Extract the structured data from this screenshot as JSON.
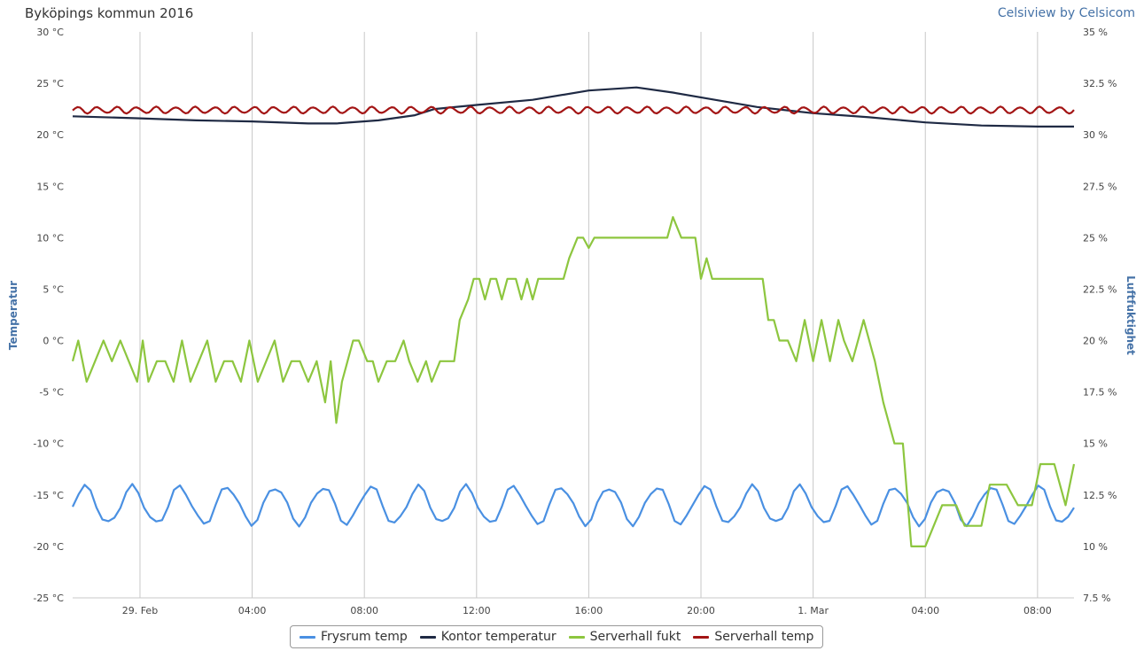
{
  "header": {
    "title": "Byköpings kommun 2016",
    "credit": "Celsiview by Celsicom"
  },
  "colors": {
    "frysrum": "#4A90E2",
    "kontor": "#1F2A44",
    "fukt": "#8DC63F",
    "serverhall_temp": "#A31515",
    "grid": "#C8C8C8"
  },
  "chart_data": {
    "type": "line",
    "grid": "vertical lines at x-axis ticks",
    "legend_position": "bottom-center",
    "x_axis": {
      "ticks": [
        "29. Feb",
        "04:00",
        "08:00",
        "12:00",
        "16:00",
        "20:00",
        "1. Mar",
        "04:00",
        "08:00"
      ],
      "tick_hours": [
        0,
        4,
        8,
        12,
        16,
        20,
        24,
        28,
        32
      ],
      "range_hours": [
        -2.4,
        33.3
      ]
    },
    "y_axis_left": {
      "title": "Temperatur",
      "ticks": [
        "30 °C",
        "25 °C",
        "20 °C",
        "15 °C",
        "10 °C",
        "5 °C",
        "0 °C",
        "-5 °C",
        "-10 °C",
        "-15 °C",
        "-20 °C",
        "-25 °C"
      ],
      "range": [
        -25,
        30
      ]
    },
    "y_axis_right": {
      "title": "Luftfuktighet",
      "ticks": [
        "35 %",
        "32.5 %",
        "30 %",
        "27.5 %",
        "25 %",
        "22.5 %",
        "20 %",
        "17.5 %",
        "15 %",
        "12.5 %",
        "10 %",
        "7.5 %"
      ],
      "range": [
        7.5,
        35
      ]
    },
    "series": [
      {
        "name": "Frysrum temp",
        "axis": "left",
        "style": "oscillating",
        "x_range_hours": [
          -2.4,
          33.3
        ],
        "base_value": -16,
        "amplitude": 1.8,
        "period_hours": 1.7
      },
      {
        "name": "Kontor temperatur",
        "axis": "left",
        "style": "smooth",
        "points": [
          [
            -2.4,
            21.8
          ],
          [
            0,
            21.6
          ],
          [
            2,
            21.4
          ],
          [
            4,
            21.3
          ],
          [
            6,
            21.1
          ],
          [
            7,
            21.1
          ],
          [
            8.5,
            21.4
          ],
          [
            9.8,
            21.9
          ],
          [
            10.5,
            22.5
          ],
          [
            12,
            22.9
          ],
          [
            14,
            23.4
          ],
          [
            16,
            24.3
          ],
          [
            17.7,
            24.6
          ],
          [
            19,
            24.1
          ],
          [
            20.5,
            23.4
          ],
          [
            22,
            22.7
          ],
          [
            24,
            22.1
          ],
          [
            26,
            21.7
          ],
          [
            28,
            21.2
          ],
          [
            30,
            20.9
          ],
          [
            32,
            20.8
          ],
          [
            33.3,
            20.8
          ]
        ]
      },
      {
        "name": "Serverhall fukt",
        "axis": "right",
        "style": "stepped",
        "points": [
          [
            -2.4,
            19
          ],
          [
            -2.2,
            20
          ],
          [
            -1.9,
            18
          ],
          [
            -1.6,
            19
          ],
          [
            -1.3,
            20
          ],
          [
            -1,
            19
          ],
          [
            -0.7,
            20
          ],
          [
            -0.4,
            19
          ],
          [
            -0.1,
            18
          ],
          [
            0.1,
            20
          ],
          [
            0.3,
            18
          ],
          [
            0.6,
            19
          ],
          [
            0.9,
            19
          ],
          [
            1.2,
            18
          ],
          [
            1.5,
            20
          ],
          [
            1.8,
            18
          ],
          [
            2.1,
            19
          ],
          [
            2.4,
            20
          ],
          [
            2.7,
            18
          ],
          [
            3,
            19
          ],
          [
            3.3,
            19
          ],
          [
            3.6,
            18
          ],
          [
            3.9,
            20
          ],
          [
            4.2,
            18
          ],
          [
            4.5,
            19
          ],
          [
            4.8,
            20
          ],
          [
            5.1,
            18
          ],
          [
            5.4,
            19
          ],
          [
            5.7,
            19
          ],
          [
            6,
            18
          ],
          [
            6.3,
            19
          ],
          [
            6.6,
            17
          ],
          [
            6.8,
            19
          ],
          [
            7,
            16
          ],
          [
            7.2,
            18
          ],
          [
            7.4,
            19
          ],
          [
            7.6,
            20
          ],
          [
            7.8,
            20
          ],
          [
            8.1,
            19
          ],
          [
            8.3,
            19
          ],
          [
            8.5,
            18
          ],
          [
            8.8,
            19
          ],
          [
            9.1,
            19
          ],
          [
            9.4,
            20
          ],
          [
            9.6,
            19
          ],
          [
            9.9,
            18
          ],
          [
            10.2,
            19
          ],
          [
            10.4,
            18
          ],
          [
            10.7,
            19
          ],
          [
            11.2,
            19
          ],
          [
            11.4,
            21
          ],
          [
            11.7,
            22
          ],
          [
            11.9,
            23
          ],
          [
            12.1,
            23
          ],
          [
            12.3,
            22
          ],
          [
            12.5,
            23
          ],
          [
            12.7,
            23
          ],
          [
            12.9,
            22
          ],
          [
            13.1,
            23
          ],
          [
            13.4,
            23
          ],
          [
            13.6,
            22
          ],
          [
            13.8,
            23
          ],
          [
            14,
            22
          ],
          [
            14.2,
            23
          ],
          [
            14.5,
            23
          ],
          [
            15.1,
            23
          ],
          [
            15.3,
            24
          ],
          [
            15.6,
            25
          ],
          [
            15.8,
            25
          ],
          [
            16,
            24.5
          ],
          [
            16.2,
            25
          ],
          [
            18.8,
            25
          ],
          [
            19,
            26
          ],
          [
            19.3,
            25
          ],
          [
            19.8,
            25
          ],
          [
            20,
            23
          ],
          [
            20.2,
            24
          ],
          [
            20.4,
            23
          ],
          [
            22.2,
            23
          ],
          [
            22.4,
            21
          ],
          [
            22.6,
            21
          ],
          [
            22.8,
            20
          ],
          [
            23.1,
            20
          ],
          [
            23.4,
            19
          ],
          [
            23.7,
            21
          ],
          [
            24,
            19
          ],
          [
            24.3,
            21
          ],
          [
            24.6,
            19
          ],
          [
            24.9,
            21
          ],
          [
            25.1,
            20
          ],
          [
            25.4,
            19
          ],
          [
            25.8,
            21
          ],
          [
            26.2,
            19
          ],
          [
            26.5,
            17
          ],
          [
            26.9,
            15
          ],
          [
            27.2,
            15
          ],
          [
            27.5,
            10
          ],
          [
            28,
            10
          ],
          [
            28.6,
            12
          ],
          [
            29.1,
            12
          ],
          [
            29.4,
            11
          ],
          [
            30,
            11
          ],
          [
            30.3,
            13
          ],
          [
            30.9,
            13
          ],
          [
            31.3,
            12
          ],
          [
            31.8,
            12
          ],
          [
            32.1,
            14
          ],
          [
            32.6,
            14
          ],
          [
            33,
            12
          ],
          [
            33.3,
            14
          ]
        ]
      },
      {
        "name": "Serverhall temp",
        "axis": "left",
        "style": "oscillating",
        "x_range_hours": [
          -2.4,
          33.3
        ],
        "base_value": 22.4,
        "amplitude": 0.3,
        "period_hours": 0.7
      }
    ]
  },
  "legend": {
    "items": [
      {
        "label": "Frysrum temp",
        "color": "#4A90E2"
      },
      {
        "label": "Kontor temperatur",
        "color": "#1F2A44"
      },
      {
        "label": "Serverhall fukt",
        "color": "#8DC63F"
      },
      {
        "label": "Serverhall temp",
        "color": "#A31515"
      }
    ]
  }
}
